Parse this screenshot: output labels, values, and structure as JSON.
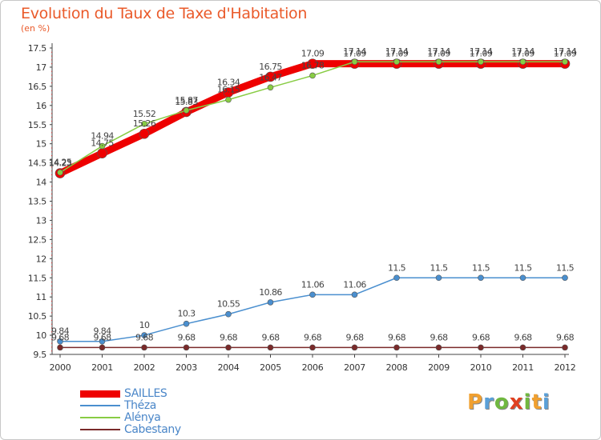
{
  "title": "Evolution du Taux de Taxe d'Habitation",
  "unit": "(en %)",
  "logo": {
    "text": "Proxiti",
    "letters": [
      {
        "ch": "P",
        "color": "#f0a030"
      },
      {
        "ch": "r",
        "color": "#5aa0d8"
      },
      {
        "ch": "o",
        "color": "#70b840"
      },
      {
        "ch": "x",
        "color": "#e04020"
      },
      {
        "ch": "i",
        "color": "#70b840"
      },
      {
        "ch": "t",
        "color": "#f0a030"
      },
      {
        "ch": "i",
        "color": "#5aa0d8"
      }
    ]
  },
  "chart_data": {
    "type": "line",
    "x": [
      "2000",
      "2001",
      "2002",
      "2003",
      "2004",
      "2005",
      "2006",
      "2007",
      "2008",
      "2009",
      "2010",
      "2011",
      "2012"
    ],
    "ylim": [
      9.5,
      17.5
    ],
    "yticks": [
      "9.5",
      "10",
      "10.5",
      "11",
      "11.5",
      "12",
      "12.5",
      "13",
      "13.5",
      "14",
      "14.5",
      "15",
      "15.5",
      "16",
      "16.5",
      "17",
      "17.5"
    ],
    "grid": false,
    "legend_position": "bottom-left",
    "series": [
      {
        "name": "SAILLES",
        "color": "#ee0000",
        "values": [
          14.23,
          14.75,
          15.26,
          15.83,
          16.34,
          16.75,
          17.09,
          17.09,
          17.09,
          17.09,
          17.09,
          17.09,
          17.09
        ],
        "labels": [
          "14.23",
          "14.75",
          "15.26",
          "15.83",
          "16.34",
          "16.75",
          "17.09",
          "17.09",
          "17.09",
          "17.09",
          "17.09",
          "17.09",
          "17.09"
        ]
      },
      {
        "name": "Théza",
        "color": "#4a8fcf",
        "values": [
          9.84,
          9.84,
          10,
          10.3,
          10.55,
          10.86,
          11.06,
          11.06,
          11.5,
          11.5,
          11.5,
          11.5,
          11.5
        ],
        "labels": [
          "9.84",
          "9.84",
          "10",
          "10.3",
          "10.55",
          "10.86",
          "11.06",
          "11.06",
          "11.5",
          "11.5",
          "11.5",
          "11.5",
          "11.5"
        ]
      },
      {
        "name": "Alénya",
        "color": "#88cc44",
        "values": [
          14.25,
          14.94,
          15.52,
          15.87,
          16.15,
          16.47,
          16.78,
          17.14,
          17.14,
          17.14,
          17.14,
          17.14,
          17.14
        ],
        "labels": [
          "14.25",
          "14.94",
          "15.52",
          "15.87",
          "16.15",
          "16.47",
          "16.78",
          "17.14",
          "17.14",
          "17.14",
          "17.14",
          "17.14",
          "17.14"
        ]
      },
      {
        "name": "Cabestany",
        "color": "#7a2a2a",
        "values": [
          9.68,
          9.68,
          9.68,
          9.68,
          9.68,
          9.68,
          9.68,
          9.68,
          9.68,
          9.68,
          9.68,
          9.68,
          9.68
        ],
        "labels": [
          "9.68",
          "9.68",
          "9.68",
          "9.68",
          "9.68",
          "9.68",
          "9.68",
          "9.68",
          "9.68",
          "9.68",
          "9.68",
          "9.68",
          "9.68"
        ]
      }
    ]
  }
}
